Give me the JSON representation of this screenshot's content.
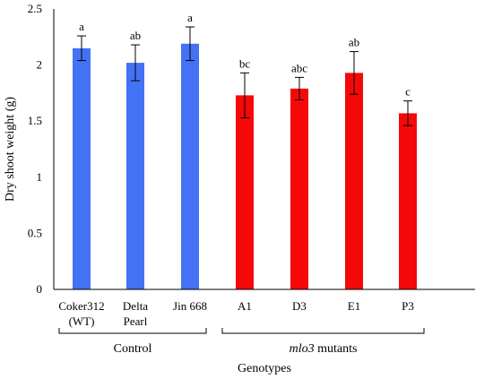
{
  "chart_data": {
    "type": "bar",
    "ylabel": "Dry shoot weight (g)",
    "xlabel": "Genotypes",
    "ylim": [
      0,
      2.5
    ],
    "yticks": [
      "0",
      "0.5",
      "1",
      "1.5",
      "2",
      "2.5"
    ],
    "grid": false,
    "categories": [
      {
        "lines": [
          "Coker312",
          "(WT)"
        ]
      },
      {
        "lines": [
          "Delta",
          "Pearl"
        ]
      },
      {
        "lines": [
          "Jin 668"
        ]
      },
      {
        "lines": [
          "A1"
        ]
      },
      {
        "lines": [
          "D3"
        ]
      },
      {
        "lines": [
          "E1"
        ]
      },
      {
        "lines": [
          "P3"
        ]
      }
    ],
    "values": [
      2.15,
      2.02,
      2.19,
      1.73,
      1.79,
      1.93,
      1.57
    ],
    "errors": [
      0.11,
      0.16,
      0.15,
      0.2,
      0.1,
      0.19,
      0.11
    ],
    "significance": [
      "a",
      "ab",
      "a",
      "bc",
      "abc",
      "ab",
      "c"
    ],
    "colors": [
      "#4472f5",
      "#4472f5",
      "#4472f5",
      "#f40808",
      "#f40808",
      "#f40808",
      "#f40808"
    ],
    "groups": [
      {
        "label": "Control",
        "italic_part": "",
        "from": 0,
        "to": 2
      },
      {
        "label": " mutants",
        "italic_part": "mlo3",
        "from": 3,
        "to": 6
      }
    ]
  }
}
